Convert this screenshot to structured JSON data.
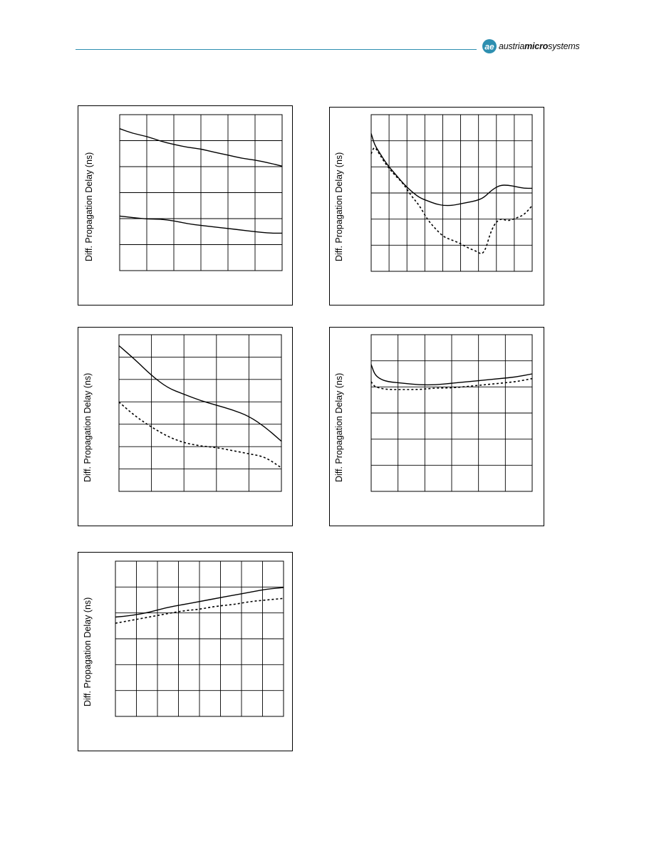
{
  "header": {
    "logo_text_pre": "austria",
    "logo_text_bold": "micro",
    "logo_text_post": "systems",
    "rule_color": "#2e8fb0"
  },
  "chart_data": [
    {
      "type": "line",
      "ylabel": "Diff. Propagation Delay (ns)",
      "xlabel": "",
      "title": "",
      "grid": true,
      "x_divisions": 6,
      "y_divisions": 6,
      "xlim": [
        0,
        1
      ],
      "ylim": [
        0,
        1
      ],
      "series": [
        {
          "style": "solid",
          "x": [
            0,
            0.08,
            0.17,
            0.25,
            0.33,
            0.42,
            0.5,
            0.58,
            0.67,
            0.75,
            0.83,
            0.92,
            1
          ],
          "y": [
            0.91,
            0.88,
            0.86,
            0.83,
            0.81,
            0.79,
            0.78,
            0.76,
            0.74,
            0.72,
            0.71,
            0.69,
            0.67
          ]
        },
        {
          "style": "solid",
          "x": [
            0,
            0.08,
            0.17,
            0.25,
            0.33,
            0.42,
            0.5,
            0.58,
            0.67,
            0.75,
            0.83,
            0.92,
            1
          ],
          "y": [
            0.35,
            0.34,
            0.33,
            0.33,
            0.32,
            0.3,
            0.29,
            0.28,
            0.27,
            0.26,
            0.25,
            0.24,
            0.24
          ]
        }
      ]
    },
    {
      "type": "line",
      "ylabel": "Diff. Propagation Delay (ns)",
      "xlabel": "",
      "title": "",
      "grid": true,
      "x_divisions": 9,
      "y_divisions": 6,
      "xlim": [
        0,
        1
      ],
      "ylim": [
        0,
        1
      ],
      "series": [
        {
          "style": "solid",
          "x": [
            0,
            0.02,
            0.05,
            0.1,
            0.15,
            0.2,
            0.25,
            0.3,
            0.35,
            0.4,
            0.45,
            0.5,
            0.55,
            0.6,
            0.65,
            0.7,
            0.75,
            0.8,
            0.85,
            0.9,
            0.95,
            1
          ],
          "y": [
            0.88,
            0.81,
            0.76,
            0.68,
            0.62,
            0.56,
            0.51,
            0.47,
            0.45,
            0.43,
            0.42,
            0.42,
            0.43,
            0.44,
            0.45,
            0.47,
            0.52,
            0.55,
            0.55,
            0.54,
            0.53,
            0.53
          ]
        },
        {
          "style": "dashed",
          "x": [
            0,
            0.02,
            0.05,
            0.1,
            0.15,
            0.2,
            0.25,
            0.3,
            0.35,
            0.4,
            0.45,
            0.5,
            0.55,
            0.6,
            0.65,
            0.7,
            0.75,
            0.8,
            0.85,
            0.9,
            0.95,
            1
          ],
          "y": [
            0.75,
            0.8,
            0.75,
            0.67,
            0.61,
            0.56,
            0.48,
            0.42,
            0.33,
            0.27,
            0.22,
            0.2,
            0.18,
            0.15,
            0.13,
            0.1,
            0.28,
            0.34,
            0.32,
            0.34,
            0.36,
            0.42
          ]
        }
      ]
    },
    {
      "type": "line",
      "ylabel": "Diff. Propagation Delay (ns)",
      "xlabel": "",
      "title": "",
      "grid": true,
      "x_divisions": 5,
      "y_divisions": 7,
      "xlim": [
        0,
        1
      ],
      "ylim": [
        0,
        1
      ],
      "series": [
        {
          "style": "solid",
          "x": [
            0,
            0.1,
            0.2,
            0.3,
            0.4,
            0.5,
            0.6,
            0.7,
            0.8,
            0.9,
            1
          ],
          "y": [
            0.93,
            0.84,
            0.74,
            0.66,
            0.62,
            0.58,
            0.55,
            0.52,
            0.48,
            0.41,
            0.32
          ]
        },
        {
          "style": "dashed",
          "x": [
            0,
            0.1,
            0.2,
            0.3,
            0.4,
            0.5,
            0.6,
            0.7,
            0.8,
            0.9,
            1
          ],
          "y": [
            0.57,
            0.48,
            0.41,
            0.35,
            0.31,
            0.29,
            0.28,
            0.26,
            0.24,
            0.22,
            0.15
          ]
        }
      ]
    },
    {
      "type": "line",
      "ylabel": "Diff. Propagation Delay (ns)",
      "xlabel": "",
      "title": "",
      "grid": true,
      "x_divisions": 6,
      "y_divisions": 6,
      "xlim": [
        0,
        1
      ],
      "ylim": [
        0,
        1
      ],
      "series": [
        {
          "style": "solid",
          "x": [
            0,
            0.02,
            0.05,
            0.1,
            0.2,
            0.3,
            0.4,
            0.5,
            0.6,
            0.7,
            0.8,
            0.9,
            1
          ],
          "y": [
            0.81,
            0.75,
            0.72,
            0.7,
            0.69,
            0.68,
            0.68,
            0.69,
            0.7,
            0.71,
            0.72,
            0.73,
            0.75
          ]
        },
        {
          "style": "dashed",
          "x": [
            0,
            0.02,
            0.05,
            0.1,
            0.2,
            0.3,
            0.4,
            0.5,
            0.6,
            0.7,
            0.8,
            0.9,
            1
          ],
          "y": [
            0.7,
            0.67,
            0.66,
            0.65,
            0.65,
            0.65,
            0.66,
            0.66,
            0.67,
            0.68,
            0.69,
            0.7,
            0.72
          ]
        }
      ]
    },
    {
      "type": "line",
      "ylabel": "Diff. Propagation Delay (ns)",
      "xlabel": "",
      "title": "",
      "grid": true,
      "x_divisions": 8,
      "y_divisions": 6,
      "xlim": [
        0,
        1
      ],
      "ylim": [
        0,
        1
      ],
      "series": [
        {
          "style": "solid",
          "x": [
            0,
            0.1,
            0.2,
            0.3,
            0.4,
            0.5,
            0.6,
            0.7,
            0.8,
            0.9,
            1
          ],
          "y": [
            0.64,
            0.65,
            0.67,
            0.7,
            0.72,
            0.74,
            0.76,
            0.78,
            0.8,
            0.82,
            0.83
          ]
        },
        {
          "style": "dashed",
          "x": [
            0,
            0.1,
            0.2,
            0.3,
            0.4,
            0.5,
            0.6,
            0.7,
            0.8,
            0.9,
            1
          ],
          "y": [
            0.6,
            0.62,
            0.64,
            0.66,
            0.68,
            0.69,
            0.71,
            0.72,
            0.74,
            0.75,
            0.76
          ]
        }
      ]
    }
  ]
}
